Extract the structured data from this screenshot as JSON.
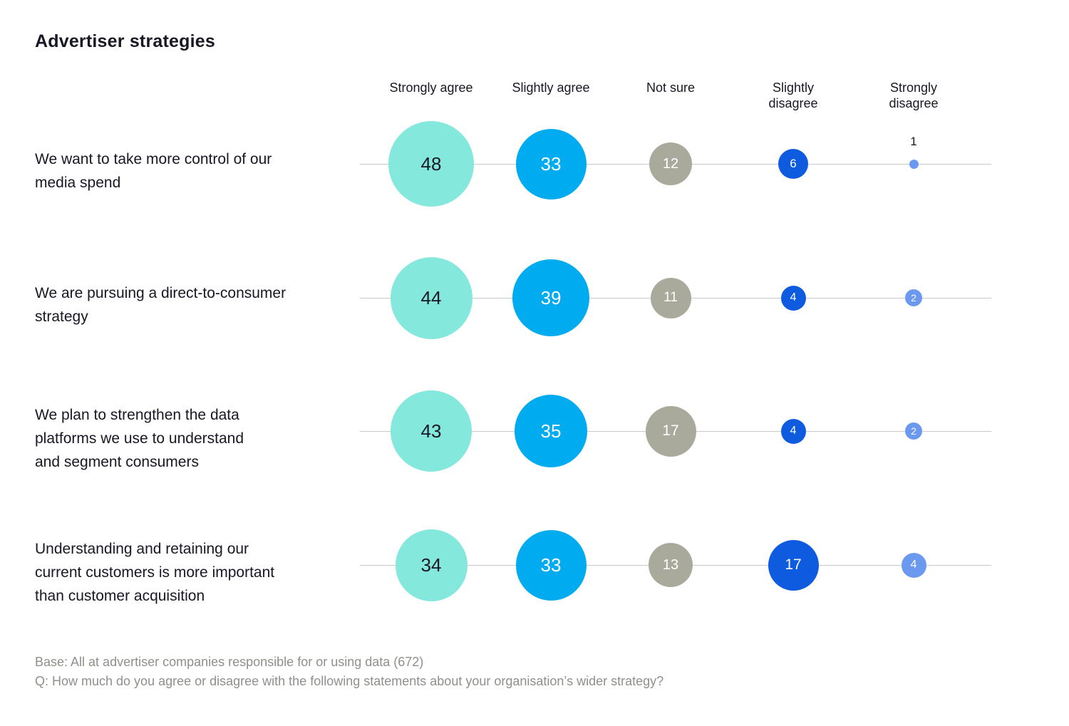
{
  "title": "Advertiser strategies",
  "columns": [
    {
      "label": "Strongly agree",
      "color": "#85E8DC",
      "text_color": "#181825"
    },
    {
      "label": "Slightly agree",
      "color": "#00ABF0",
      "text_color": "#FFFFFF"
    },
    {
      "label": "Not sure",
      "color": "#A9AA9C",
      "text_color": "#FFFFFF"
    },
    {
      "label": "Slightly\ndisagree",
      "color": "#0E5BE0",
      "text_color": "#FFFFFF"
    },
    {
      "label": "Strongly\ndisagree",
      "color": "#6C99F0",
      "text_color": "#FFFFFF"
    }
  ],
  "rows": [
    {
      "label": "We want to take more control of our\nmedia spend",
      "values": [
        48,
        33,
        12,
        6,
        1
      ]
    },
    {
      "label": "We are pursuing a direct-to-consumer\nstrategy",
      "values": [
        44,
        39,
        11,
        4,
        2
      ]
    },
    {
      "label": "We plan to strengthen the data\nplatforms we use to understand\nand segment consumers",
      "values": [
        43,
        35,
        17,
        4,
        2
      ]
    },
    {
      "label": "Understanding and retaining our\ncurrent customers is more important\nthan customer acquisition",
      "values": [
        34,
        33,
        13,
        17,
        4
      ]
    }
  ],
  "footer": {
    "base": "Base: All at advertiser companies responsible for or using data (672)",
    "question": "Q: How much do you agree or disagree with the following statements about your organisation’s wider strategy?"
  },
  "chart_data": {
    "type": "bubble",
    "title": "Advertiser strategies",
    "categories": [
      "Strongly agree",
      "Slightly agree",
      "Not sure",
      "Slightly disagree",
      "Strongly disagree"
    ],
    "series": [
      {
        "name": "We want to take more control of our media spend",
        "values": [
          48,
          33,
          12,
          6,
          1
        ]
      },
      {
        "name": "We are pursuing a direct-to-consumer strategy",
        "values": [
          44,
          39,
          11,
          4,
          2
        ]
      },
      {
        "name": "We plan to strengthen the data platforms we use to understand and segment consumers",
        "values": [
          43,
          35,
          17,
          4,
          2
        ]
      },
      {
        "name": "Understanding and retaining our current customers is more important than customer acquisition",
        "values": [
          34,
          33,
          13,
          17,
          4
        ]
      }
    ],
    "value_unit": "percent of respondents",
    "size_encoding": "bubble area proportional to value",
    "legend_position": "top",
    "colors": {
      "Strongly agree": "#85E8DC",
      "Slightly agree": "#00ABF0",
      "Not sure": "#A9AA9C",
      "Slightly disagree": "#0E5BE0",
      "Strongly disagree": "#6C99F0"
    },
    "base_note": "Base: All at advertiser companies responsible for or using data (672)",
    "question": "Q: How much do you agree or disagree with the following statements about your organisation’s wider strategy?"
  }
}
